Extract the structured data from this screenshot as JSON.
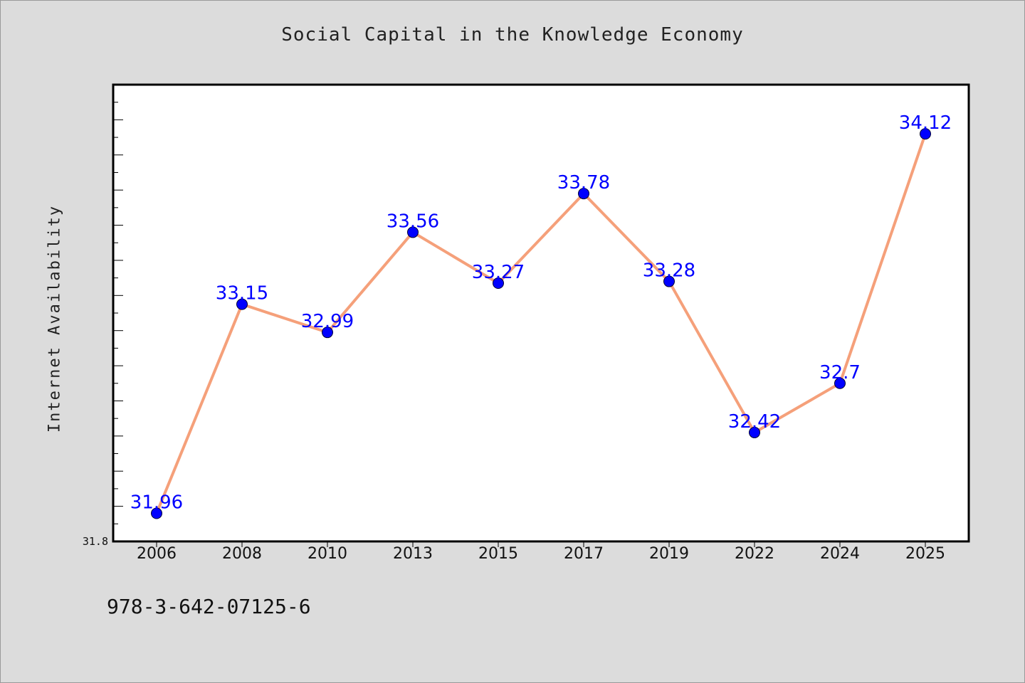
{
  "chart_data": {
    "type": "line",
    "title": "Social Capital in the Knowledge Economy",
    "xlabel": "",
    "ylabel": "Internet Availability",
    "categories": [
      "2006",
      "2008",
      "2010",
      "2013",
      "2015",
      "2017",
      "2019",
      "2022",
      "2024",
      "2025"
    ],
    "series": [
      {
        "values": [
          31.96,
          33.15,
          32.99,
          33.56,
          33.27,
          33.78,
          33.28,
          32.42,
          32.7,
          34.12
        ],
        "labels": [
          "31.96",
          "33.15",
          "32.99",
          "33.56",
          "33.27",
          "33.78",
          "33.28",
          "32.42",
          "32.7",
          "34.12"
        ]
      }
    ],
    "ylim": [
      31.8,
      34.4
    ],
    "y_tick_labels_shown": [
      "31.8"
    ],
    "grid": false,
    "line_color": "#f5a07a",
    "marker_color": "#0000ff",
    "label_color": "#0000ff"
  },
  "footer": {
    "isbn": "978-3-642-07125-6"
  }
}
